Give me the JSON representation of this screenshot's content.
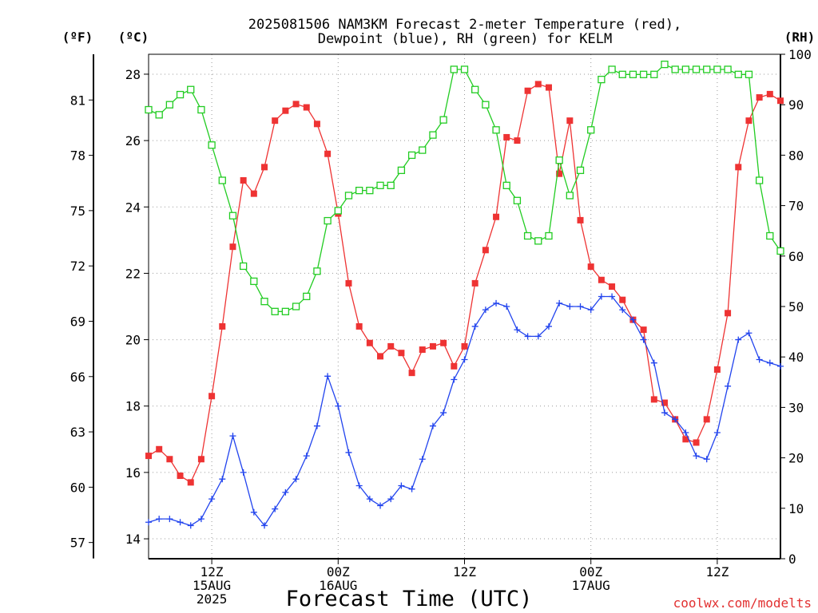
{
  "chart_data": {
    "type": "line",
    "title_lines": [
      "2025081506 NAM3KM Forecast 2-meter Temperature (red),",
      "Dewpoint (blue), RH (green) for KELM"
    ],
    "xlabel": "Forecast Time (UTC)",
    "credit": "coolwx.com/modelts",
    "axes": {
      "left_f": {
        "unit_label": "(ºF)",
        "ticks": [
          57,
          60,
          63,
          66,
          69,
          72,
          75,
          78,
          81
        ]
      },
      "left_c": {
        "unit_label": "(ºC)",
        "ticks": [
          14,
          16,
          18,
          20,
          22,
          24,
          26,
          28
        ],
        "range": [
          13.4,
          28.6
        ]
      },
      "right_rh": {
        "unit_label": "(RH)",
        "ticks": [
          0,
          10,
          20,
          30,
          40,
          50,
          60,
          70,
          80,
          90,
          100
        ],
        "range": [
          0,
          100
        ]
      },
      "x": {
        "range_hours": [
          6,
          66
        ],
        "ticks": [
          {
            "hour": 12,
            "lines": [
              "12Z",
              "15AUG",
              "2025"
            ]
          },
          {
            "hour": 24,
            "lines": [
              "00Z",
              "16AUG"
            ]
          },
          {
            "hour": 36,
            "lines": [
              "12Z"
            ]
          },
          {
            "hour": 48,
            "lines": [
              "00Z",
              "17AUG"
            ]
          },
          {
            "hour": 60,
            "lines": [
              "12Z"
            ]
          }
        ]
      }
    },
    "grid": true,
    "x_hours": [
      6,
      7,
      8,
      9,
      10,
      11,
      12,
      13,
      14,
      15,
      16,
      17,
      18,
      19,
      20,
      21,
      22,
      23,
      24,
      25,
      26,
      27,
      28,
      29,
      30,
      31,
      32,
      33,
      34,
      35,
      36,
      37,
      38,
      39,
      40,
      41,
      42,
      43,
      44,
      45,
      46,
      47,
      48,
      49,
      50,
      51,
      52,
      53,
      54,
      55,
      56,
      57,
      58,
      59,
      60,
      61,
      62,
      63,
      64,
      65,
      66
    ],
    "series": [
      {
        "name": "Temperature",
        "color": "#ee3333",
        "marker": "filled-square",
        "axis": "left_c",
        "values": [
          16.5,
          16.7,
          16.4,
          15.9,
          15.7,
          16.4,
          18.3,
          20.4,
          22.8,
          24.8,
          24.4,
          25.2,
          26.6,
          26.9,
          27.1,
          27.0,
          26.5,
          25.6,
          23.8,
          21.7,
          20.4,
          19.9,
          19.5,
          19.8,
          19.6,
          19.0,
          19.7,
          19.8,
          19.9,
          19.2,
          19.8,
          21.7,
          22.7,
          23.7,
          26.1,
          26.0,
          27.5,
          27.7,
          27.6,
          25.0,
          26.6,
          23.6,
          22.2,
          21.8,
          21.6,
          21.2,
          20.6,
          20.3,
          18.2,
          18.1,
          17.6,
          17.0,
          16.9,
          17.6,
          19.1,
          20.8,
          25.2,
          26.6,
          27.3,
          27.4,
          27.2
        ]
      },
      {
        "name": "Dewpoint",
        "color": "#2244ee",
        "marker": "plus",
        "axis": "left_c",
        "values": [
          14.5,
          14.6,
          14.6,
          14.5,
          14.4,
          14.6,
          15.2,
          15.8,
          17.1,
          16.0,
          14.8,
          14.4,
          14.9,
          15.4,
          15.8,
          16.5,
          17.4,
          18.9,
          18.0,
          16.6,
          15.6,
          15.2,
          15.0,
          15.2,
          15.6,
          15.5,
          16.4,
          17.4,
          17.8,
          18.8,
          19.4,
          20.4,
          20.9,
          21.1,
          21.0,
          20.3,
          20.1,
          20.1,
          20.4,
          21.1,
          21.0,
          21.0,
          20.9,
          21.3,
          21.3,
          20.9,
          20.6,
          20.0,
          19.3,
          17.8,
          17.6,
          17.2,
          16.5,
          16.4,
          17.2,
          18.6,
          20.0,
          20.2,
          19.4,
          19.3,
          19.2
        ]
      },
      {
        "name": "RH",
        "color": "#22cc22",
        "marker": "open-square",
        "axis": "right_rh",
        "values": [
          89,
          88,
          90,
          92,
          93,
          89,
          82,
          75,
          68,
          58,
          55,
          51,
          49,
          49,
          50,
          52,
          57,
          67,
          69,
          72,
          73,
          73,
          74,
          74,
          77,
          80,
          81,
          84,
          87,
          97,
          97,
          93,
          90,
          85,
          74,
          71,
          64,
          63,
          64,
          79,
          72,
          77,
          85,
          95,
          97,
          96,
          96,
          96,
          96,
          98,
          97,
          97,
          97,
          97,
          97,
          97,
          96,
          96,
          75,
          64,
          61
        ]
      }
    ]
  }
}
